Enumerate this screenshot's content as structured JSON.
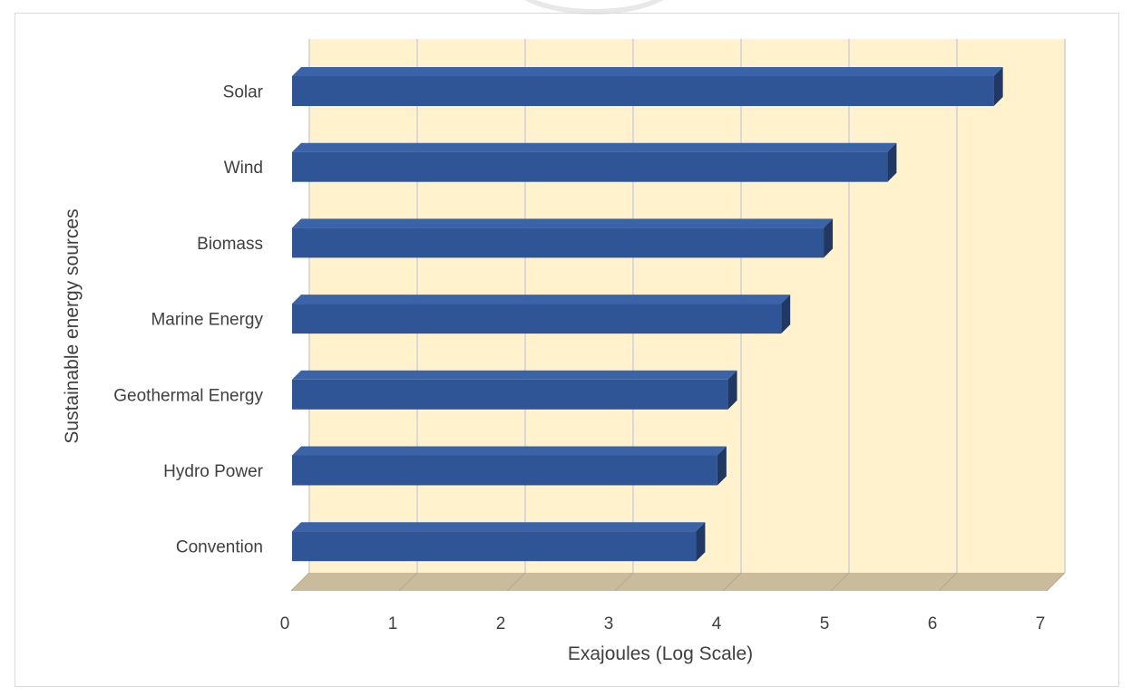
{
  "chart_data": {
    "type": "bar",
    "orientation": "horizontal",
    "style": "3d",
    "categories": [
      "Solar",
      "Wind",
      "Biomass",
      "Marine Energy",
      "Geothermal Energy",
      "Hydro Power",
      "Convention"
    ],
    "values": [
      6.6,
      5.6,
      5.0,
      4.6,
      4.1,
      4.0,
      3.8
    ],
    "xlabel": "Exajoules (Log Scale)",
    "ylabel": "Sustainable energy  sources",
    "xlim": [
      0,
      7
    ],
    "xticks": [
      "0",
      "1",
      "2",
      "3",
      "4",
      "5",
      "6",
      "7"
    ],
    "grid": true,
    "legend": "none",
    "colors": {
      "bar_front": "#2f5597",
      "bar_top": "#3a63a8",
      "bar_side": "#1f3864",
      "wall": "#fff2cc",
      "floor": "#c9bb9b",
      "gridline": "#d9d9d9"
    }
  }
}
